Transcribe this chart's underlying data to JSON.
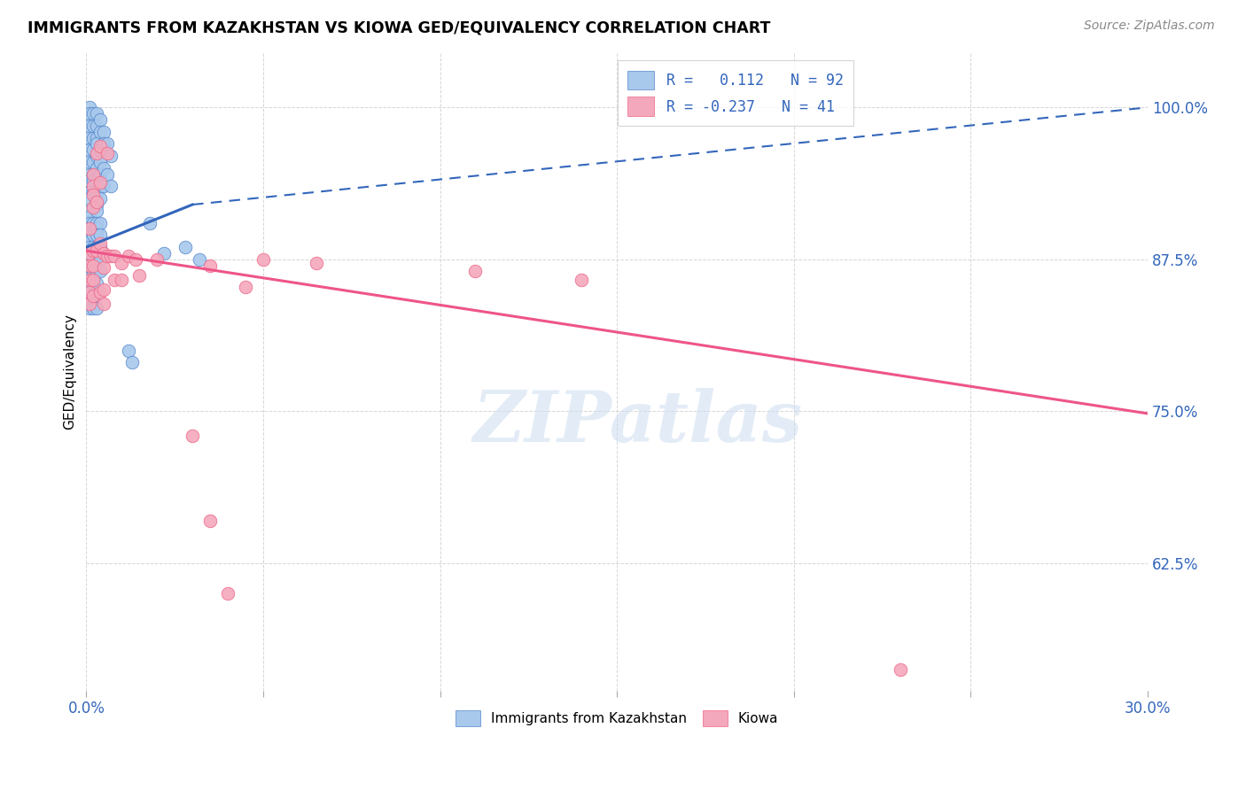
{
  "title": "IMMIGRANTS FROM KAZAKHSTAN VS KIOWA GED/EQUIVALENCY CORRELATION CHART",
  "source": "Source: ZipAtlas.com",
  "ylabel": "GED/Equivalency",
  "ytick_labels": [
    "100.0%",
    "87.5%",
    "75.0%",
    "62.5%"
  ],
  "ytick_values": [
    1.0,
    0.875,
    0.75,
    0.625
  ],
  "xmin": 0.0,
  "xmax": 0.3,
  "ymin": 0.52,
  "ymax": 1.045,
  "watermark": "ZIPatlas",
  "blue_color": "#A8C8EC",
  "pink_color": "#F4A8BC",
  "blue_edge_color": "#5588CC",
  "pink_edge_color": "#EE6688",
  "blue_line_color": "#3366BB",
  "pink_line_color": "#EE5588",
  "blue_scatter": [
    [
      0.001,
      1.0
    ],
    [
      0.001,
      0.995
    ],
    [
      0.001,
      0.985
    ],
    [
      0.001,
      0.975
    ],
    [
      0.001,
      0.965
    ],
    [
      0.001,
      0.955
    ],
    [
      0.001,
      0.945
    ],
    [
      0.001,
      0.94
    ],
    [
      0.001,
      0.93
    ],
    [
      0.001,
      0.925
    ],
    [
      0.001,
      0.915
    ],
    [
      0.001,
      0.91
    ],
    [
      0.001,
      0.905
    ],
    [
      0.001,
      0.9
    ],
    [
      0.001,
      0.895
    ],
    [
      0.001,
      0.89
    ],
    [
      0.001,
      0.885
    ],
    [
      0.001,
      0.88
    ],
    [
      0.001,
      0.875
    ],
    [
      0.001,
      0.87
    ],
    [
      0.001,
      0.865
    ],
    [
      0.001,
      0.86
    ],
    [
      0.001,
      0.855
    ],
    [
      0.001,
      0.85
    ],
    [
      0.001,
      0.84
    ],
    [
      0.001,
      0.835
    ],
    [
      0.002,
      0.995
    ],
    [
      0.002,
      0.985
    ],
    [
      0.002,
      0.975
    ],
    [
      0.002,
      0.965
    ],
    [
      0.002,
      0.955
    ],
    [
      0.002,
      0.945
    ],
    [
      0.002,
      0.94
    ],
    [
      0.002,
      0.93
    ],
    [
      0.002,
      0.905
    ],
    [
      0.002,
      0.895
    ],
    [
      0.002,
      0.885
    ],
    [
      0.002,
      0.875
    ],
    [
      0.002,
      0.865
    ],
    [
      0.002,
      0.855
    ],
    [
      0.002,
      0.845
    ],
    [
      0.002,
      0.835
    ],
    [
      0.003,
      0.995
    ],
    [
      0.003,
      0.985
    ],
    [
      0.003,
      0.975
    ],
    [
      0.003,
      0.97
    ],
    [
      0.003,
      0.96
    ],
    [
      0.003,
      0.95
    ],
    [
      0.003,
      0.94
    ],
    [
      0.003,
      0.93
    ],
    [
      0.003,
      0.92
    ],
    [
      0.003,
      0.915
    ],
    [
      0.003,
      0.905
    ],
    [
      0.003,
      0.9
    ],
    [
      0.003,
      0.895
    ],
    [
      0.003,
      0.885
    ],
    [
      0.003,
      0.875
    ],
    [
      0.003,
      0.865
    ],
    [
      0.003,
      0.855
    ],
    [
      0.003,
      0.845
    ],
    [
      0.003,
      0.835
    ],
    [
      0.004,
      0.99
    ],
    [
      0.004,
      0.98
    ],
    [
      0.004,
      0.965
    ],
    [
      0.004,
      0.955
    ],
    [
      0.004,
      0.945
    ],
    [
      0.004,
      0.935
    ],
    [
      0.004,
      0.925
    ],
    [
      0.004,
      0.905
    ],
    [
      0.004,
      0.895
    ],
    [
      0.004,
      0.885
    ],
    [
      0.004,
      0.875
    ],
    [
      0.004,
      0.865
    ],
    [
      0.005,
      0.98
    ],
    [
      0.005,
      0.97
    ],
    [
      0.005,
      0.95
    ],
    [
      0.005,
      0.935
    ],
    [
      0.006,
      0.97
    ],
    [
      0.006,
      0.945
    ],
    [
      0.007,
      0.96
    ],
    [
      0.007,
      0.935
    ],
    [
      0.012,
      0.8
    ],
    [
      0.013,
      0.79
    ],
    [
      0.018,
      0.905
    ],
    [
      0.022,
      0.88
    ],
    [
      0.028,
      0.885
    ],
    [
      0.032,
      0.875
    ]
  ],
  "pink_scatter": [
    [
      0.001,
      0.9
    ],
    [
      0.001,
      0.88
    ],
    [
      0.001,
      0.87
    ],
    [
      0.001,
      0.858
    ],
    [
      0.001,
      0.848
    ],
    [
      0.001,
      0.838
    ],
    [
      0.002,
      0.945
    ],
    [
      0.002,
      0.935
    ],
    [
      0.002,
      0.928
    ],
    [
      0.002,
      0.918
    ],
    [
      0.002,
      0.882
    ],
    [
      0.002,
      0.87
    ],
    [
      0.002,
      0.858
    ],
    [
      0.002,
      0.845
    ],
    [
      0.003,
      0.962
    ],
    [
      0.003,
      0.922
    ],
    [
      0.003,
      0.882
    ],
    [
      0.004,
      0.968
    ],
    [
      0.004,
      0.938
    ],
    [
      0.004,
      0.888
    ],
    [
      0.004,
      0.848
    ],
    [
      0.005,
      0.88
    ],
    [
      0.005,
      0.868
    ],
    [
      0.005,
      0.85
    ],
    [
      0.005,
      0.838
    ],
    [
      0.006,
      0.962
    ],
    [
      0.006,
      0.878
    ],
    [
      0.007,
      0.878
    ],
    [
      0.008,
      0.878
    ],
    [
      0.008,
      0.858
    ],
    [
      0.01,
      0.872
    ],
    [
      0.01,
      0.858
    ],
    [
      0.012,
      0.878
    ],
    [
      0.014,
      0.875
    ],
    [
      0.015,
      0.862
    ],
    [
      0.02,
      0.875
    ],
    [
      0.035,
      0.87
    ],
    [
      0.045,
      0.852
    ],
    [
      0.05,
      0.875
    ],
    [
      0.065,
      0.872
    ],
    [
      0.11,
      0.865
    ],
    [
      0.14,
      0.858
    ],
    [
      0.03,
      0.73
    ],
    [
      0.035,
      0.66
    ],
    [
      0.04,
      0.6
    ],
    [
      0.23,
      0.537
    ]
  ],
  "blue_trendline_solid": [
    [
      0.0,
      0.885
    ],
    [
      0.03,
      0.92
    ]
  ],
  "blue_trendline_dashed": [
    [
      0.03,
      0.92
    ],
    [
      0.3,
      1.0
    ]
  ],
  "pink_trendline": [
    [
      0.0,
      0.882
    ],
    [
      0.3,
      0.748
    ]
  ]
}
